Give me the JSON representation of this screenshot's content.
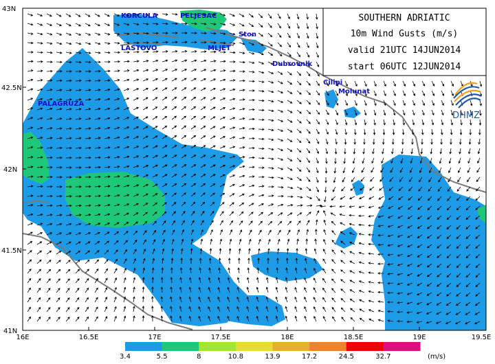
{
  "title_box": {
    "region": "SOUTHERN ADRIATIC",
    "variable": "10m Wind Gusts (m/s)",
    "valid": "valid 21UTC 14JUN2014",
    "start": "start 06UTC 12JUN2014"
  },
  "logo": {
    "text": "DHMZ"
  },
  "axes": {
    "x_ticks": [
      "16E",
      "16.5E",
      "17E",
      "17.5E",
      "18E",
      "18.5E",
      "19E",
      "19.5E"
    ],
    "y_ticks": [
      "43N",
      "42.5N",
      "42N",
      "41.5N",
      "41N"
    ]
  },
  "places": [
    "KORCULA",
    "PELJESAC",
    "LASTOVO",
    "MLJET",
    "Ston",
    "Dubrovnik",
    "Cilipi",
    "Molunat",
    "PALAGRUZA"
  ],
  "legend": {
    "thresholds": [
      "3.4",
      "5.5",
      "8",
      "10.8",
      "13.9",
      "17.2",
      "24.5",
      "32.7"
    ],
    "unit": "(m/s)",
    "colors": [
      "#1e9be6",
      "#1ec878",
      "#a0e632",
      "#e6dc32",
      "#e6af2d",
      "#f08228",
      "#f00000",
      "#dc0f7d"
    ]
  },
  "colors": {
    "water_fill_1": "#1e9be6",
    "water_fill_2": "#1ec878",
    "arrow": "#000000",
    "coast": "#7a7a7a"
  }
}
